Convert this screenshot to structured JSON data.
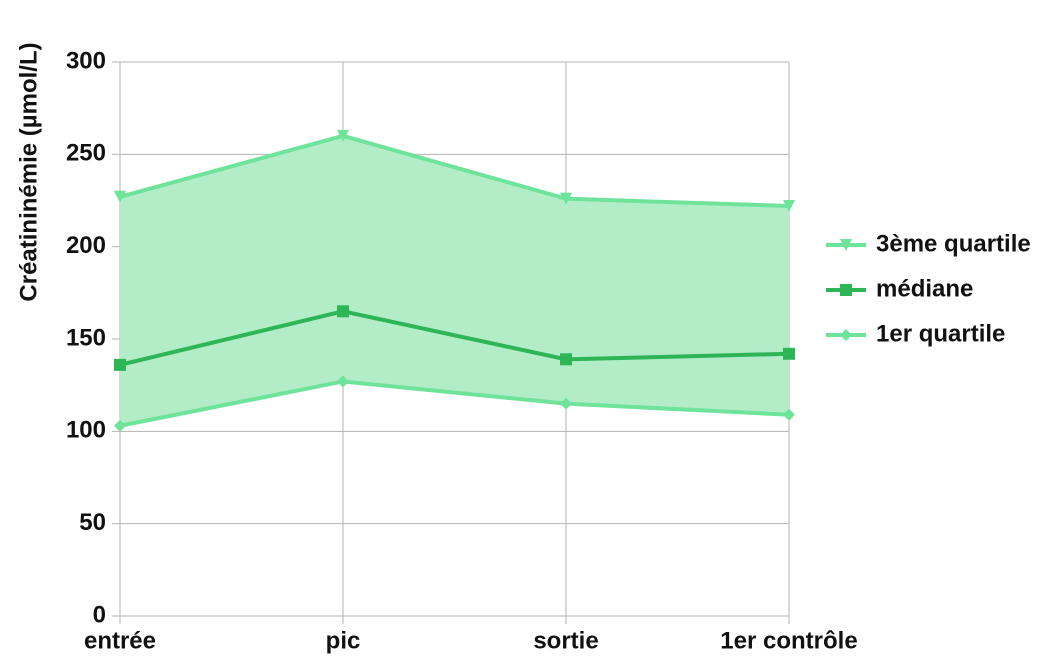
{
  "chart_data": {
    "type": "line",
    "y_label": "Créatininémie (µmol/L)",
    "categories": [
      "entrée",
      "pic",
      "sortie",
      "1er contrôle"
    ],
    "series": [
      {
        "name": "3ème quartile",
        "color": "#6ee39a",
        "marker": "triangle-down",
        "values": [
          227,
          260,
          226,
          222
        ]
      },
      {
        "name": "médiane",
        "color": "#2db556",
        "marker": "square",
        "values": [
          136,
          165,
          139,
          142
        ]
      },
      {
        "name": "1er quartile",
        "color": "#6ee39a",
        "marker": "diamond",
        "values": [
          103,
          127,
          115,
          109
        ]
      }
    ],
    "band_color": "#b3edc8",
    "ylim": [
      0,
      300
    ],
    "yticks": [
      0,
      50,
      100,
      150,
      200,
      250,
      300
    ],
    "grid": true,
    "legend": "right"
  }
}
